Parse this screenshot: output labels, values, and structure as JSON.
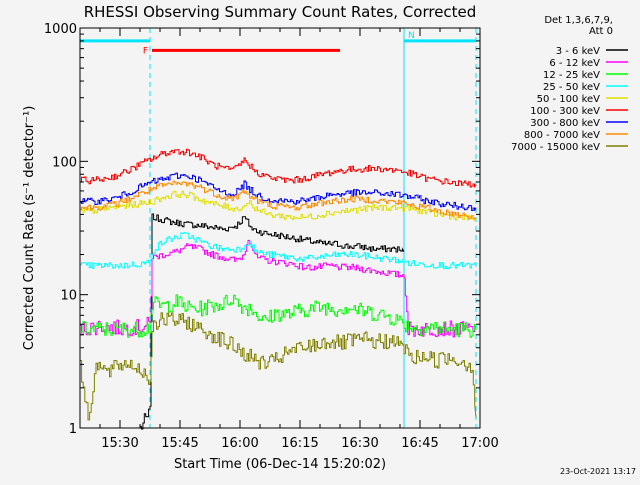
{
  "chart_data": {
    "type": "line",
    "title": "RHESSI Observing Summary Count Rates, Corrected",
    "xlabel": "Start Time (06-Dec-14 15:20:02)",
    "ylabel": "Corrected Count Rate (s⁻¹ detector⁻¹)",
    "x_ticks": [
      "15:30",
      "15:45",
      "16:00",
      "16:15",
      "16:30",
      "16:45",
      "17:00"
    ],
    "x_tick_minutes": [
      30,
      45,
      60,
      75,
      90,
      105,
      120
    ],
    "x_range_minutes": [
      20,
      120
    ],
    "y_scale": "log",
    "y_ticks": [
      "1",
      "10",
      "100",
      "1000"
    ],
    "y_tick_values": [
      1,
      10,
      100,
      1000
    ],
    "ylim": [
      1,
      1000
    ],
    "legend_title": [
      "Det 1,3,6,7,9,",
      "Att 0"
    ],
    "legend_placement": "right",
    "footer_date": "23-Oct-2021 13:17",
    "flags": [
      {
        "label": "N",
        "color": "#00e5ff",
        "x_start": 20,
        "x_end": 37.5,
        "y": 800
      },
      {
        "label": "N",
        "color": "#00e5ff",
        "x_start": 101,
        "x_end": 119,
        "y": 800
      },
      {
        "label": "F",
        "color": "#ff0000",
        "x_start": 38,
        "x_end": 85,
        "y": 680
      }
    ],
    "boundaries": [
      {
        "x": 37.5,
        "style": "dashed",
        "color": "#00e5ff"
      },
      {
        "x": 101,
        "style": "solid",
        "color": "#00e5ff"
      },
      {
        "x": 119,
        "style": "dashed",
        "color": "#00e5ff"
      }
    ],
    "series": [
      {
        "name": "3 - 6 keV",
        "color": "#000000",
        "points": [
          [
            35,
            1
          ],
          [
            37.5,
            1.3
          ],
          [
            38,
            38
          ],
          [
            40,
            37
          ],
          [
            43,
            35
          ],
          [
            46,
            34
          ],
          [
            50,
            33
          ],
          [
            53,
            32
          ],
          [
            56,
            31
          ],
          [
            59,
            33
          ],
          [
            61,
            38
          ],
          [
            63,
            31
          ],
          [
            66,
            29
          ],
          [
            69,
            28
          ],
          [
            72,
            27
          ],
          [
            75,
            26
          ],
          [
            78,
            25
          ],
          [
            81,
            24
          ],
          [
            84,
            24
          ],
          [
            87,
            23
          ],
          [
            90,
            23
          ],
          [
            93,
            22
          ],
          [
            96,
            22
          ],
          [
            99,
            22
          ],
          [
            101,
            21
          ]
        ]
      },
      {
        "name": "6 - 12 keV",
        "color": "#ff00ff",
        "points": [
          [
            20,
            5.5
          ],
          [
            25,
            5.8
          ],
          [
            30,
            5.6
          ],
          [
            35,
            5.7
          ],
          [
            37.5,
            6
          ],
          [
            38,
            19
          ],
          [
            41,
            20
          ],
          [
            44,
            21
          ],
          [
            47,
            23
          ],
          [
            50,
            22
          ],
          [
            53,
            20
          ],
          [
            56,
            19
          ],
          [
            59,
            18
          ],
          [
            61,
            20
          ],
          [
            62,
            27
          ],
          [
            64,
            19
          ],
          [
            67,
            18
          ],
          [
            70,
            17.5
          ],
          [
            73,
            17
          ],
          [
            76,
            16
          ],
          [
            79,
            16
          ],
          [
            82,
            16.5
          ],
          [
            85,
            16
          ],
          [
            88,
            16
          ],
          [
            91,
            15.5
          ],
          [
            94,
            15
          ],
          [
            97,
            14.5
          ],
          [
            100,
            14
          ],
          [
            101,
            14
          ],
          [
            102,
            5.5
          ],
          [
            106,
            5.5
          ],
          [
            110,
            5.6
          ],
          [
            114,
            5.5
          ],
          [
            119,
            5.5
          ]
        ]
      },
      {
        "name": "12 - 25 keV",
        "color": "#00ff00",
        "points": [
          [
            20,
            5.5
          ],
          [
            25,
            5.5
          ],
          [
            30,
            5.5
          ],
          [
            35,
            5.5
          ],
          [
            37.5,
            5.7
          ],
          [
            38,
            8.5
          ],
          [
            41,
            8.2
          ],
          [
            44,
            8.8
          ],
          [
            47,
            8.0
          ],
          [
            50,
            7.8
          ],
          [
            53,
            8.3
          ],
          [
            56,
            8.6
          ],
          [
            58,
            9.6
          ],
          [
            60,
            8.3
          ],
          [
            63,
            7.8
          ],
          [
            66,
            6.3
          ],
          [
            69,
            7.3
          ],
          [
            72,
            7.1
          ],
          [
            75,
            7.6
          ],
          [
            78,
            7.9
          ],
          [
            81,
            8.1
          ],
          [
            84,
            7.8
          ],
          [
            87,
            8.1
          ],
          [
            90,
            7.6
          ],
          [
            93,
            7.3
          ],
          [
            96,
            7.0
          ],
          [
            99,
            6.6
          ],
          [
            101,
            6.0
          ],
          [
            104,
            5.6
          ],
          [
            108,
            5.7
          ],
          [
            112,
            5.5
          ],
          [
            116,
            5.5
          ],
          [
            119,
            5.5
          ]
        ]
      },
      {
        "name": "25 - 50 keV",
        "color": "#00ffff",
        "points": [
          [
            20,
            16.5
          ],
          [
            25,
            16.5
          ],
          [
            30,
            16.5
          ],
          [
            35,
            17
          ],
          [
            37.5,
            17.5
          ],
          [
            38,
            21
          ],
          [
            40,
            24
          ],
          [
            42,
            26
          ],
          [
            44,
            27
          ],
          [
            46,
            28
          ],
          [
            48,
            27
          ],
          [
            50,
            25
          ],
          [
            53,
            23
          ],
          [
            56,
            22
          ],
          [
            58,
            22
          ],
          [
            60,
            22
          ],
          [
            62,
            25
          ],
          [
            64,
            21
          ],
          [
            67,
            20
          ],
          [
            70,
            19.5
          ],
          [
            73,
            19
          ],
          [
            76,
            18.5
          ],
          [
            79,
            19
          ],
          [
            82,
            19.5
          ],
          [
            85,
            20
          ],
          [
            88,
            20
          ],
          [
            91,
            19.5
          ],
          [
            94,
            19
          ],
          [
            97,
            18.5
          ],
          [
            100,
            18
          ],
          [
            101,
            17.5
          ],
          [
            104,
            17
          ],
          [
            108,
            16.8
          ],
          [
            112,
            16.5
          ],
          [
            116,
            16.5
          ],
          [
            119,
            16.5
          ]
        ]
      },
      {
        "name": "50 - 100 keV",
        "color": "#e0e000",
        "points": [
          [
            20,
            42
          ],
          [
            24,
            43
          ],
          [
            28,
            45
          ],
          [
            32,
            47
          ],
          [
            35,
            48
          ],
          [
            38,
            50
          ],
          [
            41,
            54
          ],
          [
            44,
            57
          ],
          [
            47,
            56
          ],
          [
            50,
            52
          ],
          [
            53,
            48
          ],
          [
            56,
            46
          ],
          [
            59,
            44
          ],
          [
            61,
            46
          ],
          [
            62,
            50
          ],
          [
            64,
            44
          ],
          [
            67,
            40
          ],
          [
            70,
            39
          ],
          [
            73,
            38
          ],
          [
            76,
            38
          ],
          [
            79,
            39
          ],
          [
            82,
            41
          ],
          [
            85,
            42
          ],
          [
            88,
            43
          ],
          [
            91,
            44
          ],
          [
            94,
            45
          ],
          [
            97,
            45
          ],
          [
            100,
            45
          ],
          [
            103,
            44
          ],
          [
            106,
            42
          ],
          [
            109,
            40
          ],
          [
            112,
            39
          ],
          [
            115,
            38
          ],
          [
            119,
            37
          ]
        ]
      },
      {
        "name": "100 - 300 keV",
        "color": "#ff0000",
        "points": [
          [
            20,
            72
          ],
          [
            23,
            72
          ],
          [
            26,
            74
          ],
          [
            29,
            78
          ],
          [
            32,
            85
          ],
          [
            35,
            95
          ],
          [
            38,
            105
          ],
          [
            41,
            115
          ],
          [
            44,
            120
          ],
          [
            47,
            118
          ],
          [
            50,
            108
          ],
          [
            53,
            95
          ],
          [
            56,
            88
          ],
          [
            58,
            85
          ],
          [
            60,
            95
          ],
          [
            61,
            102
          ],
          [
            62,
            96
          ],
          [
            64,
            83
          ],
          [
            67,
            76
          ],
          [
            70,
            73
          ],
          [
            73,
            72
          ],
          [
            76,
            74
          ],
          [
            79,
            78
          ],
          [
            82,
            82
          ],
          [
            85,
            85
          ],
          [
            88,
            87
          ],
          [
            91,
            88
          ],
          [
            94,
            88
          ],
          [
            97,
            87
          ],
          [
            100,
            85
          ],
          [
            103,
            80
          ],
          [
            106,
            75
          ],
          [
            109,
            72
          ],
          [
            112,
            70
          ],
          [
            115,
            68
          ],
          [
            119,
            67
          ]
        ]
      },
      {
        "name": "300 - 800 keV",
        "color": "#0000ff",
        "points": [
          [
            20,
            50
          ],
          [
            23,
            50
          ],
          [
            26,
            51
          ],
          [
            29,
            53
          ],
          [
            32,
            58
          ],
          [
            35,
            64
          ],
          [
            38,
            70
          ],
          [
            41,
            74
          ],
          [
            44,
            78
          ],
          [
            47,
            78
          ],
          [
            50,
            72
          ],
          [
            53,
            64
          ],
          [
            56,
            58
          ],
          [
            58,
            57
          ],
          [
            60,
            62
          ],
          [
            61,
            68
          ],
          [
            62,
            63
          ],
          [
            64,
            56
          ],
          [
            67,
            52
          ],
          [
            70,
            51
          ],
          [
            73,
            50
          ],
          [
            76,
            51
          ],
          [
            79,
            53
          ],
          [
            82,
            56
          ],
          [
            85,
            57
          ],
          [
            88,
            58
          ],
          [
            91,
            58
          ],
          [
            94,
            58
          ],
          [
            97,
            57
          ],
          [
            100,
            56
          ],
          [
            103,
            54
          ],
          [
            106,
            51
          ],
          [
            109,
            49
          ],
          [
            112,
            47
          ],
          [
            115,
            46
          ],
          [
            119,
            45
          ]
        ]
      },
      {
        "name": "800 - 7000 keV",
        "color": "#ff8c00",
        "points": [
          [
            20,
            45
          ],
          [
            23,
            45
          ],
          [
            26,
            46
          ],
          [
            29,
            48
          ],
          [
            32,
            52
          ],
          [
            35,
            57
          ],
          [
            38,
            62
          ],
          [
            41,
            66
          ],
          [
            44,
            68
          ],
          [
            47,
            68
          ],
          [
            50,
            64
          ],
          [
            53,
            58
          ],
          [
            56,
            54
          ],
          [
            58,
            53
          ],
          [
            60,
            56
          ],
          [
            61,
            60
          ],
          [
            62,
            56
          ],
          [
            64,
            51
          ],
          [
            67,
            47
          ],
          [
            70,
            46
          ],
          [
            73,
            45
          ],
          [
            76,
            46
          ],
          [
            79,
            48
          ],
          [
            82,
            50
          ],
          [
            85,
            51
          ],
          [
            88,
            52
          ],
          [
            91,
            52
          ],
          [
            94,
            51
          ],
          [
            97,
            50
          ],
          [
            100,
            49
          ],
          [
            103,
            47
          ],
          [
            106,
            45
          ],
          [
            109,
            43
          ],
          [
            112,
            41
          ],
          [
            115,
            40
          ],
          [
            119,
            38
          ]
        ]
      },
      {
        "name": "7000 - 15000 keV",
        "color": "#808000",
        "points": [
          [
            20,
            2.8
          ],
          [
            22,
            1.2
          ],
          [
            24,
            3
          ],
          [
            27,
            2.6
          ],
          [
            30,
            3
          ],
          [
            33,
            3
          ],
          [
            36,
            2.6
          ],
          [
            37.5,
            2.2
          ],
          [
            38,
            6
          ],
          [
            41,
            6.5
          ],
          [
            44,
            6.4
          ],
          [
            47,
            6.2
          ],
          [
            50,
            5.5
          ],
          [
            53,
            5
          ],
          [
            56,
            4.5
          ],
          [
            59,
            4
          ],
          [
            61,
            3.6
          ],
          [
            64,
            3.2
          ],
          [
            67,
            3
          ],
          [
            70,
            3.4
          ],
          [
            73,
            3.8
          ],
          [
            76,
            4
          ],
          [
            79,
            4.2
          ],
          [
            82,
            4.5
          ],
          [
            85,
            4.3
          ],
          [
            88,
            4.5
          ],
          [
            91,
            4.6
          ],
          [
            94,
            4.4
          ],
          [
            97,
            4.5
          ],
          [
            100,
            4.2
          ],
          [
            101,
            4
          ],
          [
            103,
            3.3
          ],
          [
            106,
            3.5
          ],
          [
            109,
            3.2
          ],
          [
            112,
            3.4
          ],
          [
            115,
            3.2
          ],
          [
            118,
            2.9
          ],
          [
            119,
            1.2
          ]
        ]
      }
    ]
  }
}
